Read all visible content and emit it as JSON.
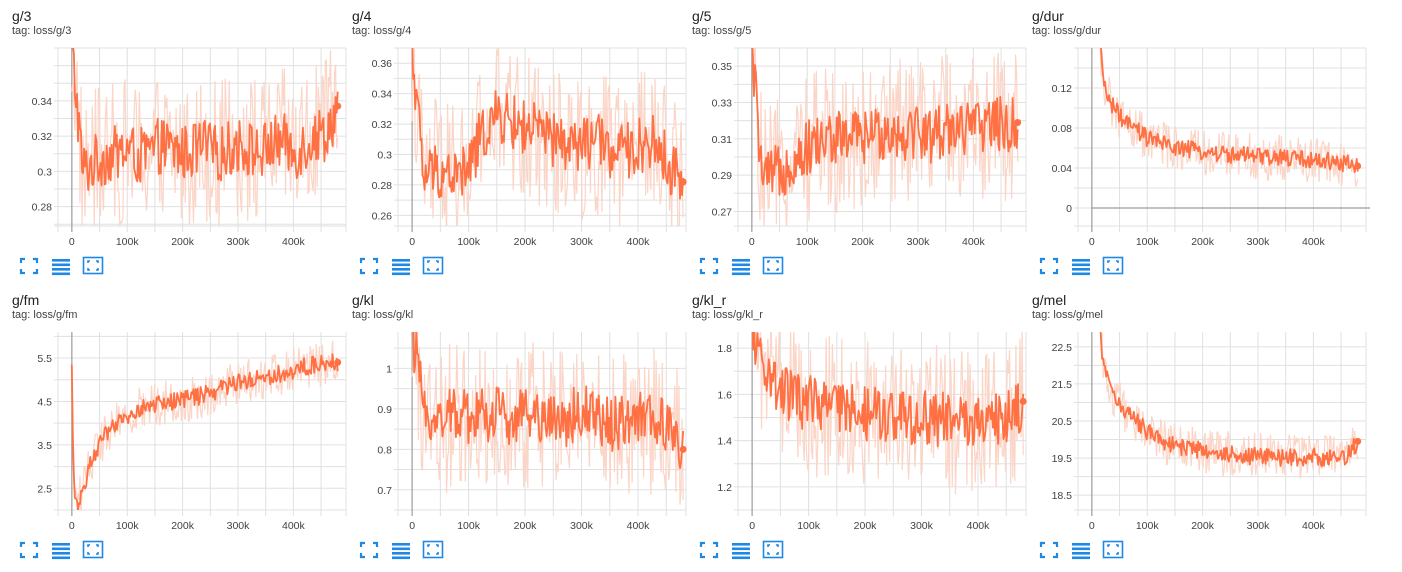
{
  "colors": {
    "line": "#ff7043",
    "smooth_band": "#fbd5c7",
    "grid": "#e0e0e0",
    "axis": "#9e9e9e",
    "toolbar": "#1e88e5"
  },
  "toolbar": {
    "icons": [
      "fullscreen-icon",
      "data-table-icon",
      "fit-domain-icon"
    ]
  },
  "cards": [
    {
      "title": "g/3",
      "tag": "tag: loss/g/3"
    },
    {
      "title": "g/4",
      "tag": "tag: loss/g/4"
    },
    {
      "title": "g/5",
      "tag": "tag: loss/g/5"
    },
    {
      "title": "g/dur",
      "tag": "tag: loss/g/dur"
    },
    {
      "title": "g/fm",
      "tag": "tag: loss/g/fm"
    },
    {
      "title": "g/kl",
      "tag": "tag: loss/g/kl"
    },
    {
      "title": "g/kl_r",
      "tag": "tag: loss/g/kl_r"
    },
    {
      "title": "g/mel",
      "tag": "tag: loss/g/mel"
    }
  ],
  "chart_data": [
    {
      "type": "line",
      "title": "g/3",
      "x_ticks": [
        0,
        100000,
        200000,
        300000,
        400000
      ],
      "x_tick_labels": [
        "0",
        "100k",
        "200k",
        "300k",
        "400k"
      ],
      "xlim": [
        -25000,
        495000
      ],
      "y_ticks": [
        0.28,
        0.3,
        0.32,
        0.34
      ],
      "y_tick_labels": [
        "0.28",
        "0.3",
        "0.32",
        "0.34"
      ],
      "ylim": [
        0.269,
        0.37
      ],
      "x": [
        0,
        20000,
        40000,
        60000,
        80000,
        100000,
        120000,
        140000,
        160000,
        180000,
        200000,
        220000,
        240000,
        260000,
        280000,
        300000,
        320000,
        340000,
        360000,
        380000,
        400000,
        420000,
        440000,
        460000,
        480000
      ],
      "y": [
        0.37,
        0.3,
        0.305,
        0.308,
        0.31,
        0.312,
        0.308,
        0.31,
        0.315,
        0.312,
        0.31,
        0.312,
        0.314,
        0.31,
        0.312,
        0.315,
        0.313,
        0.31,
        0.315,
        0.318,
        0.31,
        0.315,
        0.32,
        0.322,
        0.337
      ],
      "grid": true
    },
    {
      "type": "line",
      "title": "g/4",
      "x_ticks": [
        0,
        100000,
        200000,
        300000,
        400000
      ],
      "x_tick_labels": [
        "0",
        "100k",
        "200k",
        "300k",
        "400k"
      ],
      "xlim": [
        -25000,
        485000
      ],
      "y_ticks": [
        0.26,
        0.28,
        0.3,
        0.32,
        0.34,
        0.36
      ],
      "y_tick_labels": [
        "0.26",
        "0.28",
        "0.3",
        "0.32",
        "0.34",
        "0.36"
      ],
      "ylim": [
        0.253,
        0.37
      ],
      "x": [
        0,
        20000,
        40000,
        60000,
        80000,
        100000,
        120000,
        140000,
        160000,
        180000,
        200000,
        220000,
        240000,
        260000,
        280000,
        300000,
        320000,
        340000,
        360000,
        380000,
        400000,
        420000,
        440000,
        460000,
        480000
      ],
      "y": [
        0.37,
        0.285,
        0.29,
        0.288,
        0.286,
        0.29,
        0.31,
        0.322,
        0.325,
        0.32,
        0.318,
        0.315,
        0.31,
        0.308,
        0.306,
        0.305,
        0.31,
        0.306,
        0.3,
        0.302,
        0.305,
        0.31,
        0.302,
        0.29,
        0.282
      ],
      "grid": true
    },
    {
      "type": "line",
      "title": "g/5",
      "x_ticks": [
        0,
        100000,
        200000,
        300000,
        400000
      ],
      "x_tick_labels": [
        "0",
        "100k",
        "200k",
        "300k",
        "400k"
      ],
      "xlim": [
        -25000,
        495000
      ],
      "y_ticks": [
        0.27,
        0.29,
        0.31,
        0.33,
        0.35
      ],
      "y_tick_labels": [
        "0.27",
        "0.29",
        "0.31",
        "0.33",
        "0.35"
      ],
      "ylim": [
        0.262,
        0.36
      ],
      "x": [
        0,
        20000,
        40000,
        60000,
        80000,
        100000,
        120000,
        140000,
        160000,
        180000,
        200000,
        220000,
        240000,
        260000,
        280000,
        300000,
        320000,
        340000,
        360000,
        380000,
        400000,
        420000,
        440000,
        460000,
        480000
      ],
      "y": [
        0.36,
        0.285,
        0.29,
        0.295,
        0.3,
        0.305,
        0.308,
        0.31,
        0.31,
        0.312,
        0.31,
        0.312,
        0.315,
        0.313,
        0.314,
        0.315,
        0.312,
        0.314,
        0.318,
        0.316,
        0.315,
        0.318,
        0.32,
        0.315,
        0.319
      ],
      "grid": true
    },
    {
      "type": "line",
      "title": "g/dur",
      "x_ticks": [
        0,
        100000,
        200000,
        300000,
        400000
      ],
      "x_tick_labels": [
        "0",
        "100k",
        "200k",
        "300k",
        "400k"
      ],
      "xlim": [
        -25000,
        495000
      ],
      "y_ticks": [
        0,
        0.04,
        0.08,
        0.12
      ],
      "y_tick_labels": [
        "0",
        "0.04",
        "0.08",
        "0.12"
      ],
      "ylim": [
        -0.018,
        0.16
      ],
      "x": [
        15000,
        20000,
        30000,
        40000,
        60000,
        80000,
        100000,
        120000,
        140000,
        160000,
        180000,
        200000,
        220000,
        240000,
        260000,
        280000,
        300000,
        320000,
        340000,
        360000,
        380000,
        400000,
        420000,
        440000,
        460000,
        480000
      ],
      "y": [
        0.16,
        0.13,
        0.11,
        0.1,
        0.085,
        0.078,
        0.07,
        0.066,
        0.062,
        0.06,
        0.058,
        0.056,
        0.055,
        0.054,
        0.053,
        0.052,
        0.051,
        0.05,
        0.05,
        0.05,
        0.049,
        0.048,
        0.047,
        0.046,
        0.045,
        0.042
      ],
      "zero_line": true,
      "grid": true
    },
    {
      "type": "line",
      "title": "g/fm",
      "x_ticks": [
        0,
        100000,
        200000,
        300000,
        400000
      ],
      "x_tick_labels": [
        "0",
        "100k",
        "200k",
        "300k",
        "400k"
      ],
      "xlim": [
        -25000,
        495000
      ],
      "y_ticks": [
        2.5,
        3.5,
        4.5,
        5.5
      ],
      "y_tick_labels": [
        "2.5",
        "3.5",
        "4.5",
        "5.5"
      ],
      "ylim": [
        2.0,
        6.1
      ],
      "x": [
        0,
        2000,
        5000,
        10000,
        20000,
        40000,
        60000,
        80000,
        100000,
        120000,
        140000,
        160000,
        180000,
        200000,
        220000,
        240000,
        260000,
        280000,
        300000,
        320000,
        340000,
        360000,
        380000,
        400000,
        420000,
        440000,
        460000,
        480000
      ],
      "y": [
        5.2,
        3.5,
        2.3,
        2.1,
        2.5,
        3.3,
        3.7,
        3.95,
        4.15,
        4.3,
        4.4,
        4.45,
        4.5,
        4.55,
        4.6,
        4.65,
        4.75,
        4.85,
        4.95,
        5.0,
        5.05,
        5.1,
        5.15,
        5.2,
        5.3,
        5.35,
        5.4,
        5.4
      ],
      "grid": true
    },
    {
      "type": "line",
      "title": "g/kl",
      "x_ticks": [
        0,
        100000,
        200000,
        300000,
        400000
      ],
      "x_tick_labels": [
        "0",
        "100k",
        "200k",
        "300k",
        "400k"
      ],
      "xlim": [
        -25000,
        485000
      ],
      "y_ticks": [
        0.7,
        0.8,
        0.9,
        1
      ],
      "y_tick_labels": [
        "0.7",
        "0.8",
        "0.9",
        "1"
      ],
      "ylim": [
        0.65,
        1.09
      ],
      "x": [
        0,
        20000,
        40000,
        60000,
        80000,
        100000,
        120000,
        140000,
        160000,
        180000,
        200000,
        220000,
        240000,
        260000,
        280000,
        300000,
        320000,
        340000,
        360000,
        380000,
        400000,
        420000,
        440000,
        460000,
        480000
      ],
      "y": [
        1.09,
        0.9,
        0.88,
        0.87,
        0.9,
        0.88,
        0.89,
        0.88,
        0.9,
        0.87,
        0.88,
        0.89,
        0.88,
        0.87,
        0.88,
        0.9,
        0.87,
        0.88,
        0.86,
        0.87,
        0.88,
        0.87,
        0.86,
        0.85,
        0.8
      ],
      "grid": true
    },
    {
      "type": "line",
      "title": "g/kl_r",
      "x_ticks": [
        0,
        100000,
        200000,
        300000,
        400000
      ],
      "x_tick_labels": [
        "0",
        "100k",
        "200k",
        "300k",
        "400k"
      ],
      "xlim": [
        -25000,
        485000
      ],
      "y_ticks": [
        1.2,
        1.4,
        1.6,
        1.8
      ],
      "y_tick_labels": [
        "1.2",
        "1.4",
        "1.6",
        "1.8"
      ],
      "ylim": [
        1.1,
        1.87
      ],
      "x": [
        0,
        20000,
        40000,
        60000,
        80000,
        100000,
        120000,
        140000,
        160000,
        180000,
        200000,
        220000,
        240000,
        260000,
        280000,
        300000,
        320000,
        340000,
        360000,
        380000,
        400000,
        420000,
        440000,
        460000,
        480000
      ],
      "y": [
        1.87,
        1.72,
        1.66,
        1.6,
        1.58,
        1.56,
        1.55,
        1.54,
        1.53,
        1.52,
        1.52,
        1.51,
        1.5,
        1.5,
        1.5,
        1.49,
        1.5,
        1.49,
        1.48,
        1.49,
        1.5,
        1.49,
        1.48,
        1.5,
        1.57
      ],
      "grid": true
    },
    {
      "type": "line",
      "title": "g/mel",
      "x_ticks": [
        0,
        100000,
        200000,
        300000,
        400000
      ],
      "x_tick_labels": [
        "0",
        "100k",
        "200k",
        "300k",
        "400k"
      ],
      "xlim": [
        -25000,
        495000
      ],
      "y_ticks": [
        18.5,
        19.5,
        20.5,
        21.5,
        22.5
      ],
      "y_tick_labels": [
        "18.5",
        "19.5",
        "20.5",
        "21.5",
        "22.5"
      ],
      "ylim": [
        18.1,
        22.9
      ],
      "x": [
        15000,
        20000,
        40000,
        60000,
        80000,
        100000,
        120000,
        140000,
        160000,
        180000,
        200000,
        220000,
        240000,
        260000,
        280000,
        300000,
        320000,
        340000,
        360000,
        380000,
        400000,
        420000,
        440000,
        460000,
        480000
      ],
      "y": [
        22.9,
        22.0,
        21.2,
        20.8,
        20.5,
        20.2,
        20.0,
        19.9,
        19.8,
        19.75,
        19.7,
        19.65,
        19.6,
        19.6,
        19.55,
        19.6,
        19.55,
        19.5,
        19.55,
        19.5,
        19.55,
        19.5,
        19.6,
        19.55,
        19.95
      ],
      "grid": true
    }
  ]
}
